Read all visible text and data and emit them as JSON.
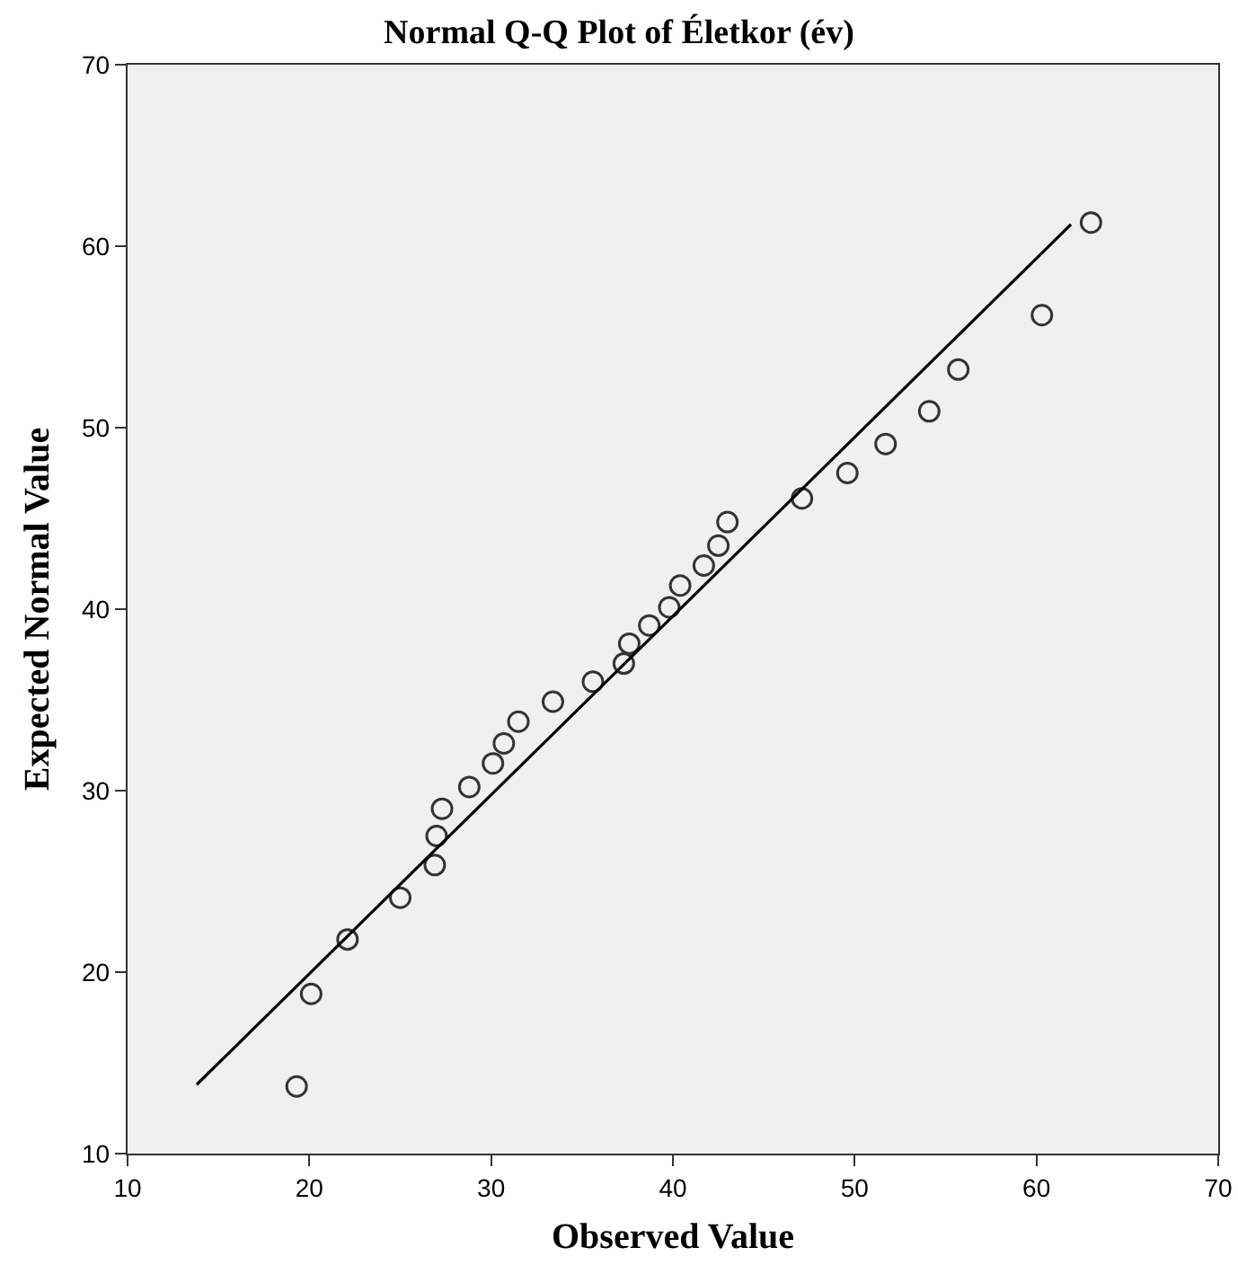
{
  "chart_data": {
    "type": "scatter",
    "title": "Normal Q-Q Plot of Életkor (év)",
    "xlabel": "Observed Value",
    "ylabel": "Expected Normal Value",
    "xlim": [
      10,
      70
    ],
    "xticks": [
      10,
      20,
      30,
      40,
      50,
      60,
      70
    ],
    "ylim": [
      10,
      70
    ],
    "yticks": [
      10,
      20,
      30,
      40,
      50,
      60,
      70
    ],
    "grid": false,
    "series": [
      {
        "marker": "circle",
        "color": "#333333",
        "x": [
          19.3,
          20.1,
          22.1,
          25.0,
          26.9,
          27.0,
          27.3,
          28.8,
          30.1,
          30.7,
          31.5,
          33.4,
          35.6,
          37.3,
          37.6,
          38.7,
          39.8,
          40.4,
          41.7,
          42.5,
          43.0,
          47.1,
          49.6,
          51.7,
          54.1,
          55.7,
          60.3,
          63.0
        ],
        "values": [
          13.7,
          18.8,
          21.8,
          24.1,
          25.9,
          27.5,
          29.0,
          30.2,
          31.5,
          32.6,
          33.8,
          34.9,
          36.0,
          37.0,
          38.1,
          39.1,
          40.1,
          41.3,
          42.4,
          43.5,
          44.8,
          46.1,
          47.5,
          49.1,
          50.9,
          53.2,
          56.2,
          61.3
        ]
      },
      {
        "type": "line",
        "marker": "none",
        "color": "#000000",
        "x": [
          13.8,
          61.9
        ],
        "values": [
          13.8,
          61.2
        ]
      }
    ]
  }
}
